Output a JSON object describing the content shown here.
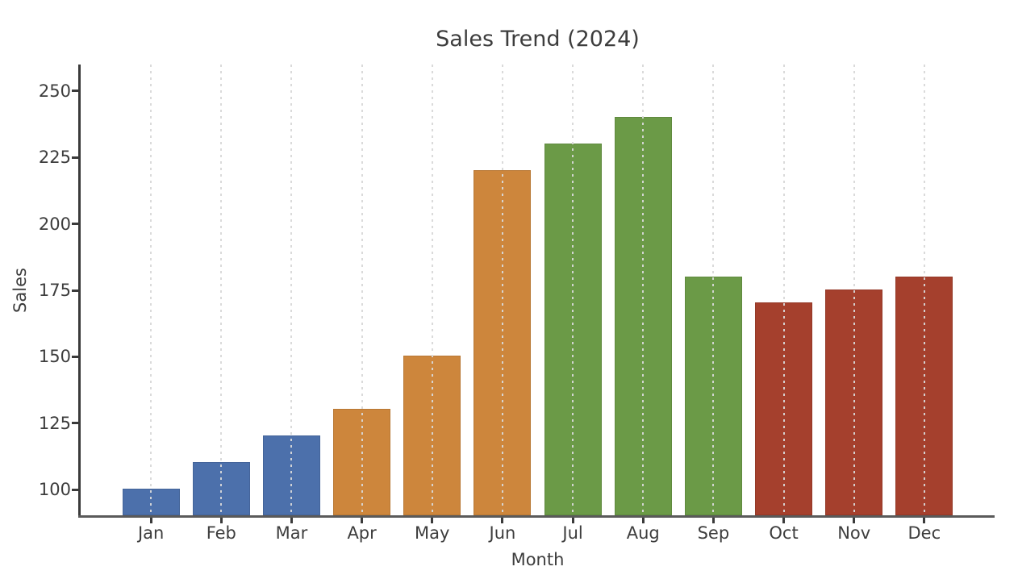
{
  "chart_data": {
    "type": "bar",
    "title": "Sales Trend (2024)",
    "xlabel": "Month",
    "ylabel": "Sales",
    "categories": [
      "Jan",
      "Feb",
      "Mar",
      "Apr",
      "May",
      "Jun",
      "Jul",
      "Aug",
      "Sep",
      "Oct",
      "Nov",
      "Dec"
    ],
    "values": [
      100,
      110,
      120,
      130,
      150,
      220,
      230,
      240,
      180,
      170,
      175,
      180
    ],
    "bar_colors": [
      "#4c70ab",
      "#4c70ab",
      "#4c70ab",
      "#cd863c",
      "#cd863c",
      "#cd863c",
      "#6b9a47",
      "#6b9a47",
      "#6b9a47",
      "#a5402d",
      "#a5402d",
      "#a5402d"
    ],
    "yticks": [
      100,
      125,
      150,
      175,
      200,
      225,
      250
    ],
    "ylim": [
      90,
      260
    ],
    "grid": {
      "vertical": true,
      "horizontal": false,
      "style": "dashed",
      "color": "#d8d8d8",
      "above_bars": true
    },
    "legend": "none",
    "background_color": "#ffffff",
    "text_color": "#3d3d3d",
    "left_spine_color": "#3a3a3a",
    "bottom_spine_color": "#5a5a5a"
  }
}
